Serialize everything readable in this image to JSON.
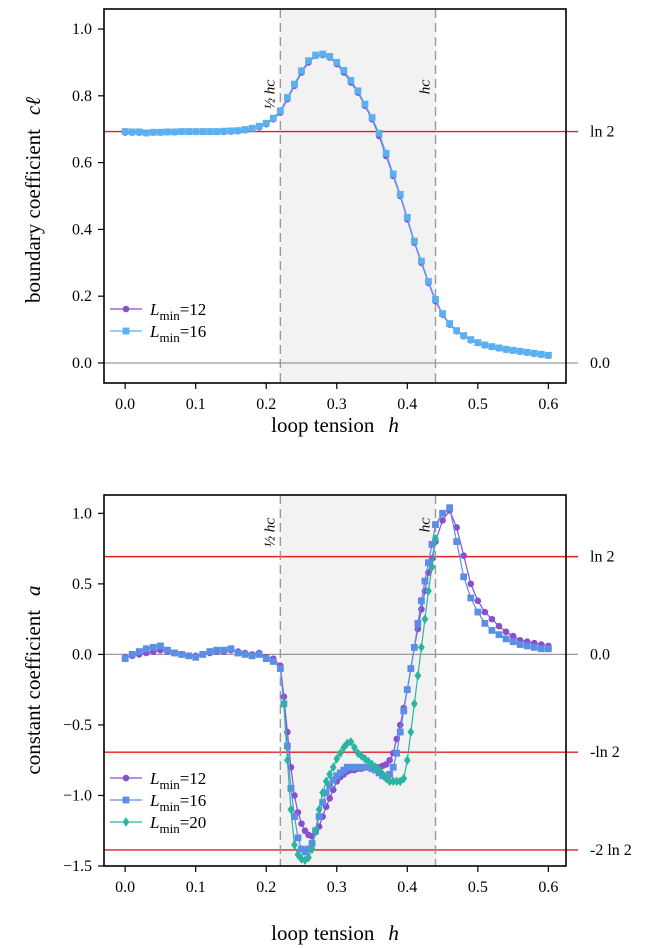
{
  "colors": {
    "series12": "#8a4fcf",
    "series16": "#5ab0f0",
    "series16_bottom": "#5c8ee6",
    "series20": "#2bb5a0",
    "redline": "#e02020",
    "shade": "#f2f2f2",
    "dashed": "#999999",
    "zeroline": "#999999"
  },
  "chart_data": [
    {
      "type": "line",
      "ylabel_text": "boundary coefficient",
      "ylabel_symbol": "cℓ",
      "xlabel_text": "loop tension",
      "xlabel_symbol": "h",
      "xlim": [
        -0.03,
        0.625
      ],
      "ylim": [
        -0.06,
        1.06
      ],
      "xticks": [
        0.0,
        0.1,
        0.2,
        0.3,
        0.4,
        0.5,
        0.6
      ],
      "xtick_labels": [
        "0.0",
        "0.1",
        "0.2",
        "0.3",
        "0.4",
        "0.5",
        "0.6"
      ],
      "yticks": [
        0.0,
        0.2,
        0.4,
        0.6,
        0.8,
        1.0
      ],
      "ytick_labels": [
        "0.0",
        "0.2",
        "0.4",
        "0.6",
        "0.8",
        "1.0"
      ],
      "shaded_x": [
        0.22,
        0.44
      ],
      "vlines": [
        {
          "x": 0.22,
          "label": "½ h_c"
        },
        {
          "x": 0.44,
          "label": "h_c"
        }
      ],
      "hlines": [
        {
          "y": 0.6931,
          "label": "ln 2",
          "color": "red"
        },
        {
          "y": 0.0,
          "label": "0.0",
          "color": "gray"
        }
      ],
      "legend": [
        "L_min=12",
        "L_min=16"
      ],
      "series": [
        {
          "name": "L_min=12",
          "marker": "circle",
          "x": [
            0.0,
            0.01,
            0.02,
            0.03,
            0.04,
            0.05,
            0.06,
            0.07,
            0.08,
            0.09,
            0.1,
            0.11,
            0.12,
            0.13,
            0.14,
            0.15,
            0.16,
            0.17,
            0.18,
            0.19,
            0.2,
            0.21,
            0.22,
            0.23,
            0.24,
            0.25,
            0.26,
            0.27,
            0.28,
            0.29,
            0.3,
            0.31,
            0.32,
            0.33,
            0.34,
            0.35,
            0.36,
            0.37,
            0.38,
            0.39,
            0.4,
            0.41,
            0.42,
            0.43,
            0.44,
            0.45,
            0.46,
            0.47,
            0.48,
            0.49,
            0.5,
            0.51,
            0.52,
            0.53,
            0.54,
            0.55,
            0.56,
            0.57,
            0.58,
            0.59,
            0.6
          ],
          "y": [
            0.69,
            0.69,
            0.69,
            0.688,
            0.69,
            0.69,
            0.691,
            0.691,
            0.692,
            0.692,
            0.692,
            0.692,
            0.692,
            0.692,
            0.692,
            0.693,
            0.694,
            0.697,
            0.701,
            0.706,
            0.715,
            0.73,
            0.75,
            0.79,
            0.83,
            0.87,
            0.9,
            0.92,
            0.922,
            0.915,
            0.895,
            0.87,
            0.84,
            0.81,
            0.77,
            0.73,
            0.68,
            0.62,
            0.56,
            0.5,
            0.43,
            0.36,
            0.3,
            0.24,
            0.185,
            0.145,
            0.115,
            0.095,
            0.08,
            0.068,
            0.06,
            0.053,
            0.048,
            0.044,
            0.04,
            0.037,
            0.034,
            0.031,
            0.028,
            0.025,
            0.022
          ]
        },
        {
          "name": "L_min=16",
          "marker": "square",
          "x": [
            0.0,
            0.01,
            0.02,
            0.03,
            0.04,
            0.05,
            0.06,
            0.07,
            0.08,
            0.09,
            0.1,
            0.11,
            0.12,
            0.13,
            0.14,
            0.15,
            0.16,
            0.17,
            0.18,
            0.19,
            0.2,
            0.21,
            0.22,
            0.23,
            0.24,
            0.25,
            0.26,
            0.27,
            0.28,
            0.29,
            0.3,
            0.31,
            0.32,
            0.33,
            0.34,
            0.35,
            0.36,
            0.37,
            0.38,
            0.39,
            0.4,
            0.41,
            0.42,
            0.43,
            0.44,
            0.45,
            0.46,
            0.47,
            0.48,
            0.49,
            0.5,
            0.51,
            0.52,
            0.53,
            0.54,
            0.55,
            0.56,
            0.57,
            0.58,
            0.59,
            0.6
          ],
          "y": [
            0.693,
            0.692,
            0.692,
            0.689,
            0.691,
            0.691,
            0.692,
            0.692,
            0.693,
            0.693,
            0.693,
            0.693,
            0.693,
            0.693,
            0.694,
            0.695,
            0.696,
            0.699,
            0.703,
            0.709,
            0.718,
            0.733,
            0.755,
            0.795,
            0.835,
            0.875,
            0.905,
            0.922,
            0.925,
            0.918,
            0.9,
            0.876,
            0.846,
            0.815,
            0.775,
            0.735,
            0.688,
            0.628,
            0.566,
            0.505,
            0.436,
            0.365,
            0.305,
            0.244,
            0.19,
            0.148,
            0.118,
            0.097,
            0.082,
            0.07,
            0.061,
            0.054,
            0.049,
            0.045,
            0.041,
            0.038,
            0.035,
            0.032,
            0.029,
            0.026,
            0.023
          ]
        }
      ]
    },
    {
      "type": "line",
      "ylabel_text": "constant coefficient",
      "ylabel_symbol": "a",
      "xlabel_text": "loop tension",
      "xlabel_symbol": "h",
      "xlim": [
        -0.03,
        0.625
      ],
      "ylim": [
        -1.5,
        1.13
      ],
      "xticks": [
        0.0,
        0.1,
        0.2,
        0.3,
        0.4,
        0.5,
        0.6
      ],
      "xtick_labels": [
        "0.0",
        "0.1",
        "0.2",
        "0.3",
        "0.4",
        "0.5",
        "0.6"
      ],
      "yticks": [
        -1.5,
        -1.0,
        -0.5,
        0.0,
        0.5,
        1.0
      ],
      "ytick_labels": [
        "−1.5",
        "−1.0",
        "−0.5",
        "0.0",
        "0.5",
        "1.0"
      ],
      "shaded_x": [
        0.22,
        0.44
      ],
      "vlines": [
        {
          "x": 0.22,
          "label": "½ h_c"
        },
        {
          "x": 0.44,
          "label": "h_c"
        }
      ],
      "hlines": [
        {
          "y": 0.6931,
          "label": "ln 2",
          "color": "red"
        },
        {
          "y": 0.0,
          "label": "0.0",
          "color": "gray"
        },
        {
          "y": -0.6931,
          "label": "-ln 2",
          "color": "red"
        },
        {
          "y": -1.3863,
          "label": "-2 ln 2",
          "color": "red"
        }
      ],
      "legend": [
        "L_min=12",
        "L_min=16",
        "L_min=20"
      ],
      "series": [
        {
          "name": "L_min=12",
          "marker": "circle",
          "x": [
            0.0,
            0.01,
            0.02,
            0.03,
            0.04,
            0.05,
            0.06,
            0.07,
            0.08,
            0.09,
            0.1,
            0.11,
            0.12,
            0.13,
            0.14,
            0.15,
            0.16,
            0.17,
            0.18,
            0.19,
            0.2,
            0.21,
            0.22,
            0.225,
            0.23,
            0.235,
            0.24,
            0.245,
            0.25,
            0.255,
            0.26,
            0.265,
            0.27,
            0.275,
            0.28,
            0.285,
            0.29,
            0.295,
            0.3,
            0.305,
            0.31,
            0.315,
            0.32,
            0.325,
            0.33,
            0.335,
            0.34,
            0.345,
            0.35,
            0.355,
            0.36,
            0.365,
            0.37,
            0.375,
            0.38,
            0.385,
            0.39,
            0.395,
            0.4,
            0.405,
            0.41,
            0.415,
            0.42,
            0.425,
            0.43,
            0.435,
            0.44,
            0.45,
            0.46,
            0.47,
            0.48,
            0.49,
            0.5,
            0.51,
            0.52,
            0.53,
            0.54,
            0.55,
            0.56,
            0.57,
            0.58,
            0.59,
            0.6
          ],
          "y": [
            -0.02,
            -0.01,
            0.0,
            0.01,
            0.02,
            0.03,
            0.02,
            0.01,
            0.0,
            -0.01,
            -0.01,
            0.0,
            0.01,
            0.02,
            0.02,
            0.03,
            0.02,
            0.01,
            0.0,
            0.01,
            -0.02,
            -0.03,
            -0.08,
            -0.3,
            -0.55,
            -0.8,
            -1.0,
            -1.12,
            -1.2,
            -1.25,
            -1.28,
            -1.29,
            -1.26,
            -1.22,
            -1.15,
            -1.08,
            -1.02,
            -0.96,
            -0.9,
            -0.87,
            -0.85,
            -0.83,
            -0.82,
            -0.82,
            -0.81,
            -0.81,
            -0.8,
            -0.8,
            -0.8,
            -0.8,
            -0.8,
            -0.79,
            -0.78,
            -0.75,
            -0.7,
            -0.6,
            -0.5,
            -0.38,
            -0.25,
            -0.1,
            0.05,
            0.18,
            0.32,
            0.45,
            0.58,
            0.68,
            0.8,
            0.95,
            1.02,
            0.9,
            0.7,
            0.5,
            0.38,
            0.3,
            0.25,
            0.2,
            0.16,
            0.13,
            0.1,
            0.09,
            0.08,
            0.07,
            0.06
          ]
        },
        {
          "name": "L_min=16",
          "marker": "square",
          "x": [
            0.0,
            0.01,
            0.02,
            0.03,
            0.04,
            0.05,
            0.06,
            0.07,
            0.08,
            0.09,
            0.1,
            0.11,
            0.12,
            0.13,
            0.14,
            0.15,
            0.16,
            0.17,
            0.18,
            0.19,
            0.2,
            0.21,
            0.22,
            0.225,
            0.23,
            0.235,
            0.24,
            0.245,
            0.25,
            0.255,
            0.26,
            0.265,
            0.27,
            0.275,
            0.28,
            0.285,
            0.29,
            0.295,
            0.3,
            0.305,
            0.31,
            0.315,
            0.32,
            0.325,
            0.33,
            0.335,
            0.34,
            0.345,
            0.35,
            0.355,
            0.36,
            0.365,
            0.37,
            0.375,
            0.38,
            0.385,
            0.39,
            0.395,
            0.4,
            0.405,
            0.41,
            0.415,
            0.42,
            0.425,
            0.43,
            0.435,
            0.44,
            0.45,
            0.46,
            0.47,
            0.48,
            0.49,
            0.5,
            0.51,
            0.52,
            0.53,
            0.54,
            0.55,
            0.56,
            0.57,
            0.58,
            0.59,
            0.6
          ],
          "y": [
            -0.03,
            0.0,
            0.02,
            0.04,
            0.05,
            0.06,
            0.03,
            0.01,
            0.0,
            -0.01,
            -0.02,
            0.0,
            0.02,
            0.03,
            0.03,
            0.04,
            0.01,
            0.0,
            -0.01,
            0.0,
            -0.03,
            -0.05,
            -0.1,
            -0.35,
            -0.65,
            -0.95,
            -1.15,
            -1.3,
            -1.38,
            -1.4,
            -1.38,
            -1.34,
            -1.25,
            -1.15,
            -1.05,
            -0.98,
            -0.93,
            -0.89,
            -0.86,
            -0.84,
            -0.82,
            -0.8,
            -0.8,
            -0.8,
            -0.8,
            -0.8,
            -0.8,
            -0.8,
            -0.81,
            -0.82,
            -0.84,
            -0.86,
            -0.87,
            -0.85,
            -0.8,
            -0.7,
            -0.55,
            -0.4,
            -0.25,
            -0.1,
            0.05,
            0.22,
            0.38,
            0.52,
            0.65,
            0.78,
            0.92,
            1.0,
            1.04,
            0.8,
            0.55,
            0.4,
            0.3,
            0.22,
            0.17,
            0.14,
            0.11,
            0.09,
            0.07,
            0.06,
            0.05,
            0.04,
            0.04
          ]
        },
        {
          "name": "L_min=20",
          "marker": "diamond",
          "x": [
            0.225,
            0.23,
            0.235,
            0.24,
            0.245,
            0.25,
            0.255,
            0.26,
            0.265,
            0.27,
            0.275,
            0.28,
            0.285,
            0.29,
            0.295,
            0.3,
            0.305,
            0.31,
            0.315,
            0.32,
            0.325,
            0.33,
            0.335,
            0.34,
            0.345,
            0.35,
            0.355,
            0.36,
            0.365,
            0.37,
            0.375,
            0.38,
            0.385,
            0.39,
            0.395,
            0.4,
            0.405,
            0.41,
            0.415,
            0.42,
            0.425,
            0.43,
            0.435,
            0.44
          ],
          "y": [
            -0.35,
            -0.75,
            -1.1,
            -1.35,
            -1.42,
            -1.45,
            -1.46,
            -1.44,
            -1.38,
            -1.25,
            -1.1,
            -0.98,
            -0.9,
            -0.85,
            -0.8,
            -0.74,
            -0.7,
            -0.66,
            -0.63,
            -0.62,
            -0.66,
            -0.7,
            -0.72,
            -0.74,
            -0.76,
            -0.78,
            -0.8,
            -0.82,
            -0.85,
            -0.88,
            -0.9,
            -0.9,
            -0.9,
            -0.9,
            -0.88,
            -0.75,
            -0.55,
            -0.35,
            -0.15,
            0.05,
            0.25,
            0.45,
            0.62,
            0.82
          ]
        }
      ]
    }
  ]
}
